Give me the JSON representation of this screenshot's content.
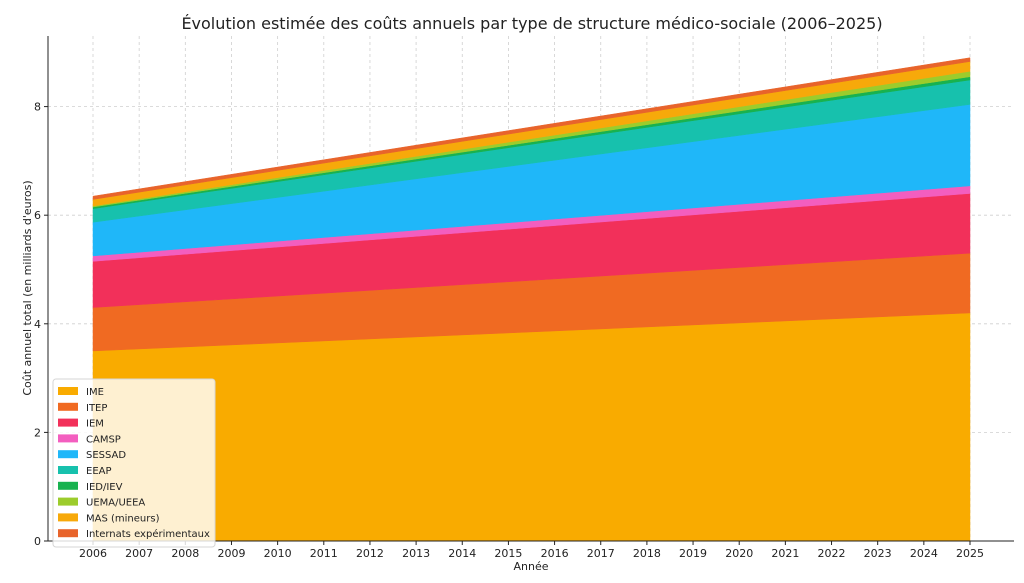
{
  "chart_data": {
    "type": "area",
    "stacked": true,
    "title": "Évolution estimée des coûts annuels par type de structure médico-sociale (2006–2025)",
    "xlabel": "Année",
    "ylabel": "Coût annuel total (en milliards d'euros)",
    "x": [
      2006,
      2007,
      2008,
      2009,
      2010,
      2011,
      2012,
      2013,
      2014,
      2015,
      2016,
      2017,
      2018,
      2019,
      2020,
      2021,
      2022,
      2023,
      2024,
      2025
    ],
    "x_ticks": [
      "2006",
      "2007",
      "2008",
      "2009",
      "2010",
      "2011",
      "2012",
      "2013",
      "2014",
      "2015",
      "2016",
      "2017",
      "2018",
      "2019",
      "2020",
      "2021",
      "2022",
      "2023",
      "2024",
      "2025"
    ],
    "ylim": [
      0,
      9.3
    ],
    "y_ticks": [
      0,
      2,
      4,
      6,
      8
    ],
    "grid": true,
    "legend_position": "lower-left",
    "series": [
      {
        "name": "IME",
        "color": "#f9ab00",
        "start": 3.5,
        "end": 4.2
      },
      {
        "name": "ITEP",
        "color": "#f06a22",
        "start": 0.8,
        "end": 1.1
      },
      {
        "name": "IEM",
        "color": "#f2305a",
        "start": 0.85,
        "end": 1.1
      },
      {
        "name": "CAMSP",
        "color": "#f35ebf",
        "start": 0.1,
        "end": 0.14
      },
      {
        "name": "SESSAD",
        "color": "#1fb7f9",
        "start": 0.62,
        "end": 1.5
      },
      {
        "name": "EEAP",
        "color": "#17c1ad",
        "start": 0.25,
        "end": 0.45
      },
      {
        "name": "IED/IEV",
        "color": "#18b24f",
        "start": 0.03,
        "end": 0.06
      },
      {
        "name": "UEMA/UEEA",
        "color": "#9ccc2c",
        "start": 0.02,
        "end": 0.1
      },
      {
        "name": "MAS (mineurs)",
        "color": "#f7a90a",
        "start": 0.12,
        "end": 0.18
      },
      {
        "name": "Internats expérimentaux",
        "color": "#e8642b",
        "start": 0.06,
        "end": 0.07
      }
    ]
  }
}
